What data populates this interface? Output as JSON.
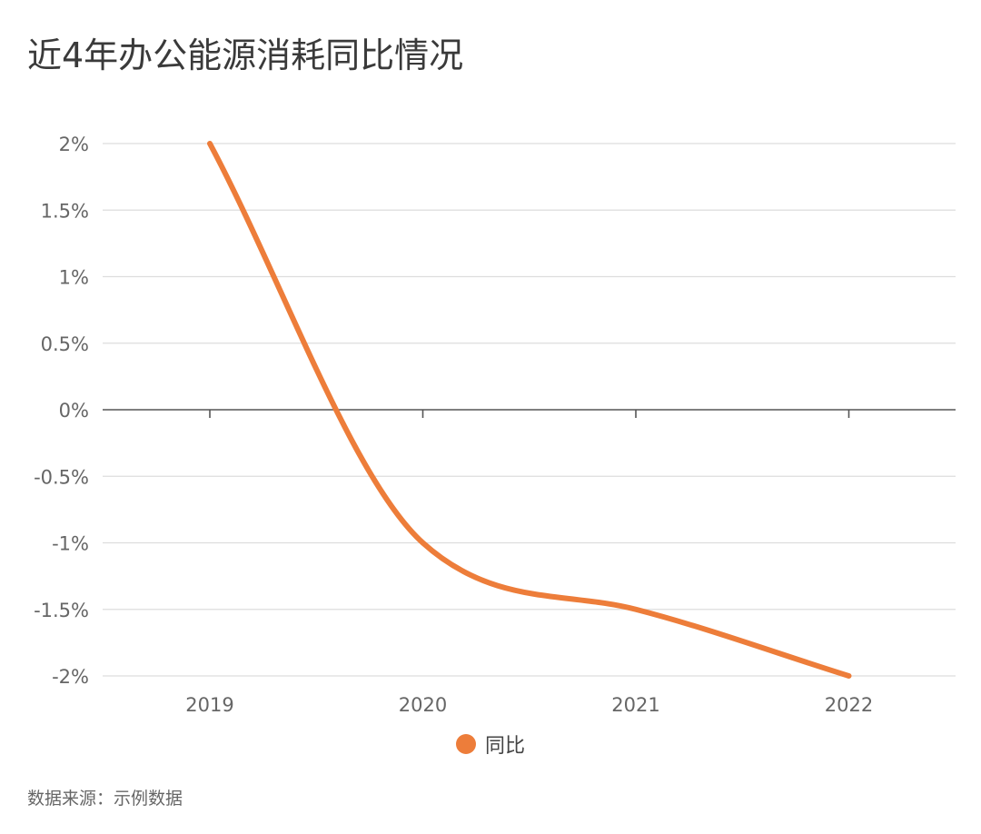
{
  "chart_data": {
    "type": "line",
    "title": "近4年办公能源消耗同比情况",
    "categories": [
      "2019",
      "2020",
      "2021",
      "2022"
    ],
    "series": [
      {
        "name": "同比",
        "values": [
          2,
          -1,
          -1.5,
          -2
        ]
      }
    ],
    "y_tick_labels": [
      "2%",
      "1.5%",
      "1%",
      "0.5%",
      "0%",
      "-0.5%",
      "-1%",
      "-1.5%",
      "-2%"
    ],
    "ylim": [
      -2,
      2
    ],
    "grid": true,
    "legend_position": "bottom-center",
    "source": "数据来源：示例数据"
  },
  "colors": {
    "series": "#ED7D3A",
    "grid": "#dddddd",
    "zero_axis": "#555555"
  }
}
